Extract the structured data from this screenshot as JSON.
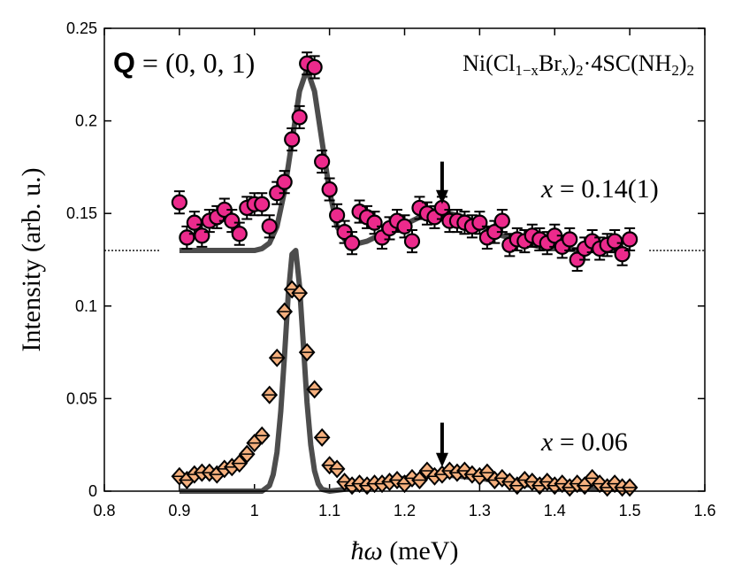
{
  "chart_data": {
    "type": "scatter",
    "xlabel": [
      "ħω",
      " (meV)"
    ],
    "ylabel": "Intensity (arb. u.)",
    "xlim": [
      0.8,
      1.6
    ],
    "xticks": [
      0.8,
      0.9,
      1,
      1.1,
      1.2,
      1.3,
      1.4,
      1.5,
      1.6
    ],
    "ylim": [
      0,
      0.25
    ],
    "yticks": [
      0,
      0.05,
      0.1,
      0.15,
      0.2,
      0.25
    ],
    "q_label": [
      "Q",
      " = (0, 0, 1)"
    ],
    "formula": [
      "Ni(Cl",
      "1−x",
      "Br",
      "x",
      ")",
      "2",
      "·4SC(NH",
      "2",
      ")",
      "2"
    ],
    "x": [
      0.9,
      0.91,
      0.92,
      0.93,
      0.94,
      0.95,
      0.96,
      0.97,
      0.98,
      0.99,
      1.0,
      1.01,
      1.02,
      1.03,
      1.04,
      1.05,
      1.06,
      1.07,
      1.08,
      1.09,
      1.1,
      1.11,
      1.12,
      1.13,
      1.14,
      1.15,
      1.16,
      1.17,
      1.18,
      1.19,
      1.2,
      1.21,
      1.22,
      1.23,
      1.24,
      1.25,
      1.26,
      1.27,
      1.28,
      1.29,
      1.3,
      1.31,
      1.32,
      1.33,
      1.34,
      1.35,
      1.36,
      1.37,
      1.38,
      1.39,
      1.4,
      1.41,
      1.42,
      1.43,
      1.44,
      1.45,
      1.46,
      1.47,
      1.48,
      1.49,
      1.5
    ],
    "series": [
      {
        "label": [
          "x",
          " = 0.14(1)"
        ],
        "marker": "circle",
        "color": "#ec2a8c",
        "yerr": 0.006,
        "values": [
          0.156,
          0.137,
          0.145,
          0.138,
          0.146,
          0.148,
          0.152,
          0.146,
          0.139,
          0.153,
          0.155,
          0.155,
          0.143,
          0.161,
          0.167,
          0.19,
          0.202,
          0.231,
          0.229,
          0.178,
          0.163,
          0.149,
          0.14,
          0.134,
          0.151,
          0.148,
          0.145,
          0.137,
          0.142,
          0.146,
          0.143,
          0.135,
          0.153,
          0.15,
          0.148,
          0.153,
          0.146,
          0.146,
          0.145,
          0.143,
          0.145,
          0.137,
          0.14,
          0.146,
          0.133,
          0.136,
          0.135,
          0.138,
          0.136,
          0.134,
          0.138,
          0.132,
          0.136,
          0.125,
          0.131,
          0.135,
          0.131,
          0.133,
          0.135,
          0.128,
          0.136
        ]
      },
      {
        "label": [
          "x",
          " = 0.06"
        ],
        "marker": "diamond",
        "color": "#f5b07e",
        "yerr": 0.0015,
        "values": [
          0.008,
          0.006,
          0.009,
          0.01,
          0.01,
          0.009,
          0.012,
          0.013,
          0.015,
          0.02,
          0.026,
          0.03,
          0.052,
          0.072,
          0.097,
          0.109,
          0.107,
          0.075,
          0.055,
          0.029,
          0.014,
          0.012,
          0.005,
          0.003,
          0.004,
          0.003,
          0.004,
          0.004,
          0.005,
          0.006,
          0.004,
          0.007,
          0.006,
          0.011,
          0.008,
          0.009,
          0.011,
          0.01,
          0.011,
          0.009,
          0.008,
          0.01,
          0.006,
          0.007,
          0.005,
          0.003,
          0.006,
          0.005,
          0.003,
          0.005,
          0.003,
          0.004,
          0.002,
          0.004,
          0.003,
          0.007,
          0.004,
          0.002,
          0.004,
          0.002,
          0.002
        ]
      }
    ],
    "fits": [
      {
        "color": "#4d4d4d",
        "x": [
          0.9,
          0.95,
          1.0,
          1.01,
          1.02,
          1.03,
          1.04,
          1.05,
          1.06,
          1.07,
          1.08,
          1.09,
          1.1,
          1.11,
          1.12,
          1.13,
          1.14,
          1.15,
          1.16,
          1.17,
          1.18,
          1.19,
          1.2,
          1.21,
          1.22,
          1.23,
          1.24,
          1.25,
          1.26,
          1.27,
          1.28,
          1.29,
          1.3,
          1.31,
          1.32,
          1.33,
          1.34,
          1.35,
          1.36,
          1.37,
          1.38,
          1.39,
          1.4,
          1.45,
          1.5
        ],
        "values": [
          0.13,
          0.13,
          0.13,
          0.131,
          0.134,
          0.143,
          0.162,
          0.189,
          0.216,
          0.228,
          0.216,
          0.189,
          0.162,
          0.143,
          0.136,
          0.134,
          0.134,
          0.135,
          0.137,
          0.138,
          0.14,
          0.142,
          0.144,
          0.146,
          0.148,
          0.149,
          0.15,
          0.15,
          0.15,
          0.149,
          0.148,
          0.146,
          0.144,
          0.142,
          0.14,
          0.138,
          0.137,
          0.135,
          0.134,
          0.133,
          0.132,
          0.131,
          0.131,
          0.13,
          0.13
        ]
      },
      {
        "color": "#4d4d4d",
        "x": [
          0.9,
          0.95,
          0.98,
          1.0,
          1.01,
          1.02,
          1.025,
          1.03,
          1.035,
          1.04,
          1.045,
          1.05,
          1.055,
          1.06,
          1.065,
          1.07,
          1.075,
          1.08,
          1.085,
          1.09,
          1.1,
          1.12,
          1.15,
          1.2,
          1.25,
          1.3,
          1.35,
          1.4,
          1.45,
          1.5
        ],
        "values": [
          0,
          0,
          0,
          0,
          0,
          0.003,
          0.009,
          0.021,
          0.043,
          0.073,
          0.106,
          0.128,
          0.13,
          0.111,
          0.08,
          0.048,
          0.025,
          0.011,
          0.004,
          0.001,
          0,
          0.001,
          0.003,
          0.007,
          0.009,
          0.007,
          0.004,
          0.002,
          0.001,
          0.001
        ]
      }
    ],
    "baseline": 0.13,
    "arrows": [
      {
        "x": 1.25,
        "y_from": 0.178,
        "y_to": 0.155
      },
      {
        "x": 1.25,
        "y_from": 0.037,
        "y_to": 0.013
      }
    ]
  }
}
